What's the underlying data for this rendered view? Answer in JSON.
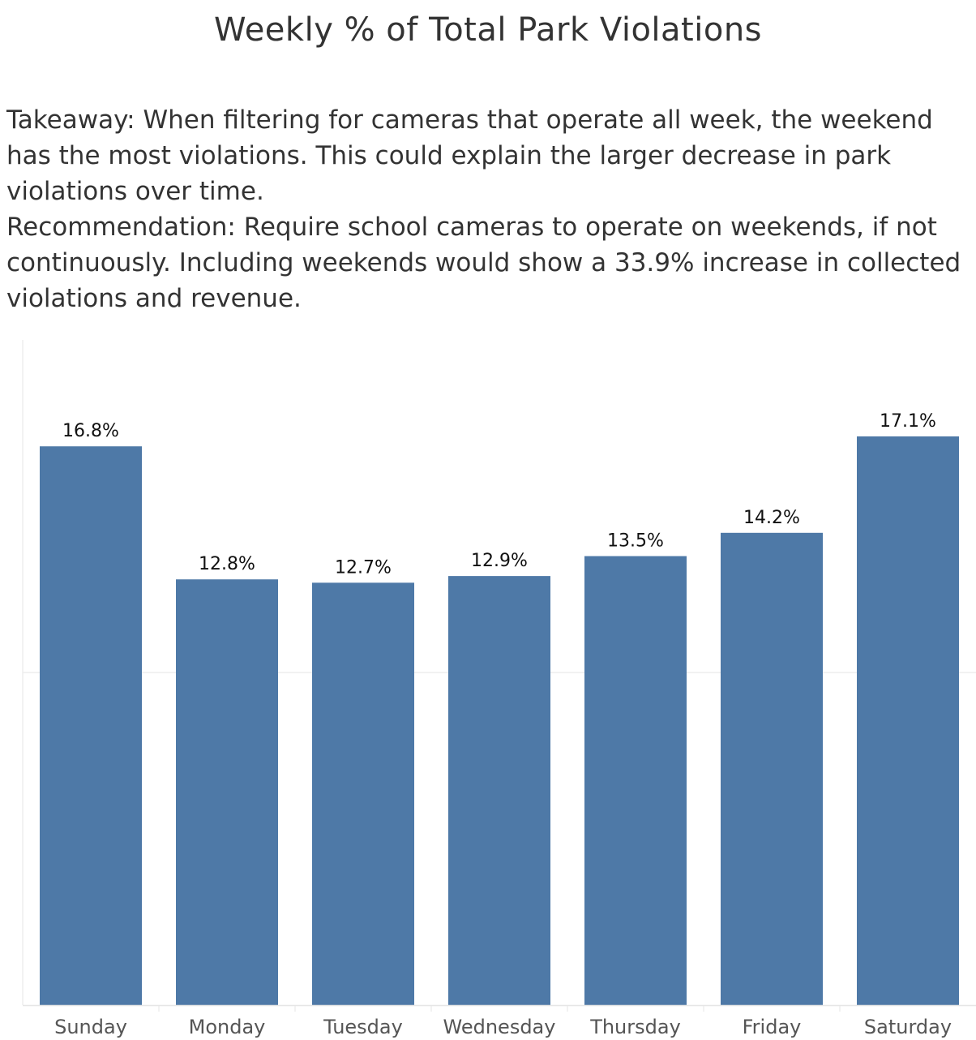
{
  "title": "Weekly % of Total Park Violations",
  "description": {
    "takeaway": "Takeaway: When filtering for cameras that operate all week, the weekend has the most violations. This could explain the larger decrease in park violations over time.",
    "recommendation": "Recommendation: Require school cameras to operate on weekends, if not continuously. Including weekends would show a 33.9% increase in collected violations and revenue."
  },
  "chart_data": {
    "type": "bar",
    "title": "Weekly % of Total Park Violations",
    "categories": [
      "Sunday",
      "Monday",
      "Tuesday",
      "Wednesday",
      "Thursday",
      "Friday",
      "Saturday"
    ],
    "values": [
      16.8,
      12.8,
      12.7,
      12.9,
      13.5,
      14.2,
      17.1
    ],
    "data_labels": [
      "16.8%",
      "12.8%",
      "12.7%",
      "12.9%",
      "13.5%",
      "14.2%",
      "17.1%"
    ],
    "xlabel": "",
    "ylabel": "",
    "ylim": [
      0,
      20
    ],
    "grid": true,
    "gridlines": [
      10
    ],
    "legend": "none",
    "colors": {
      "bar": "#4e79a7",
      "label": "#111111",
      "tick": "#555555",
      "grid": "#eeeeee",
      "axis": "#e6e6e6"
    }
  }
}
